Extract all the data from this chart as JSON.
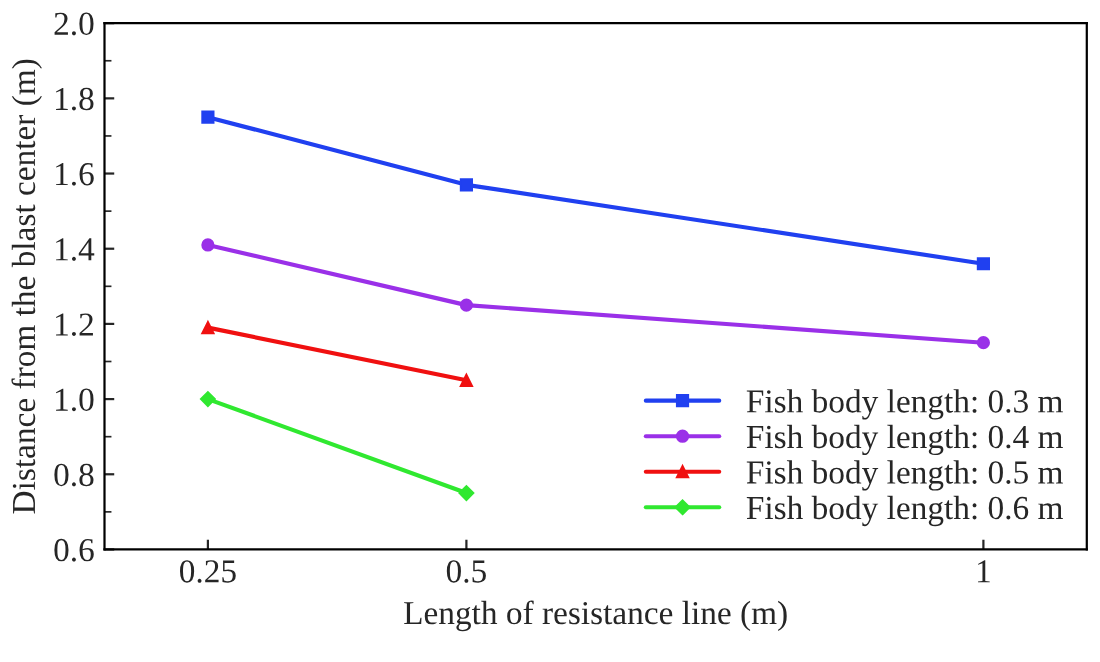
{
  "chart_data": {
    "type": "line",
    "xlabel": "Length of resistance line (m)",
    "ylabel": "Distance from the blast center (m)",
    "xlim": [
      0.15,
      1.1
    ],
    "xticks": [
      0.25,
      0.5,
      1
    ],
    "ylim": [
      0.6,
      2.0
    ],
    "yticks": [
      0.6,
      0.8,
      {
        "value": 1,
        "label": "1.0"
      },
      1.2,
      1.4,
      1.6,
      1.8,
      {
        "value": 2,
        "label": "2.0"
      }
    ],
    "grid": false,
    "legend": "bottom right",
    "series": [
      {
        "name": "Fish body length: 0.3 m",
        "color": "#2040f0",
        "marker": "square",
        "x": [
          0.25,
          0.5,
          1
        ],
        "values": [
          1.75,
          1.57,
          1.36
        ]
      },
      {
        "name": "Fish body length: 0.4 m",
        "color": "#9a30e8",
        "marker": "circle",
        "x": [
          0.25,
          0.5,
          1
        ],
        "values": [
          1.41,
          1.25,
          1.15
        ]
      },
      {
        "name": "Fish body length: 0.5 m",
        "color": "#f01010",
        "marker": "triangle",
        "x": [
          0.25,
          0.5
        ],
        "values": [
          1.19,
          1.05
        ]
      },
      {
        "name": "Fish body length: 0.6 m",
        "color": "#30e830",
        "marker": "diamond",
        "x": [
          0.25,
          0.5
        ],
        "values": [
          1.0,
          0.75
        ]
      }
    ]
  }
}
